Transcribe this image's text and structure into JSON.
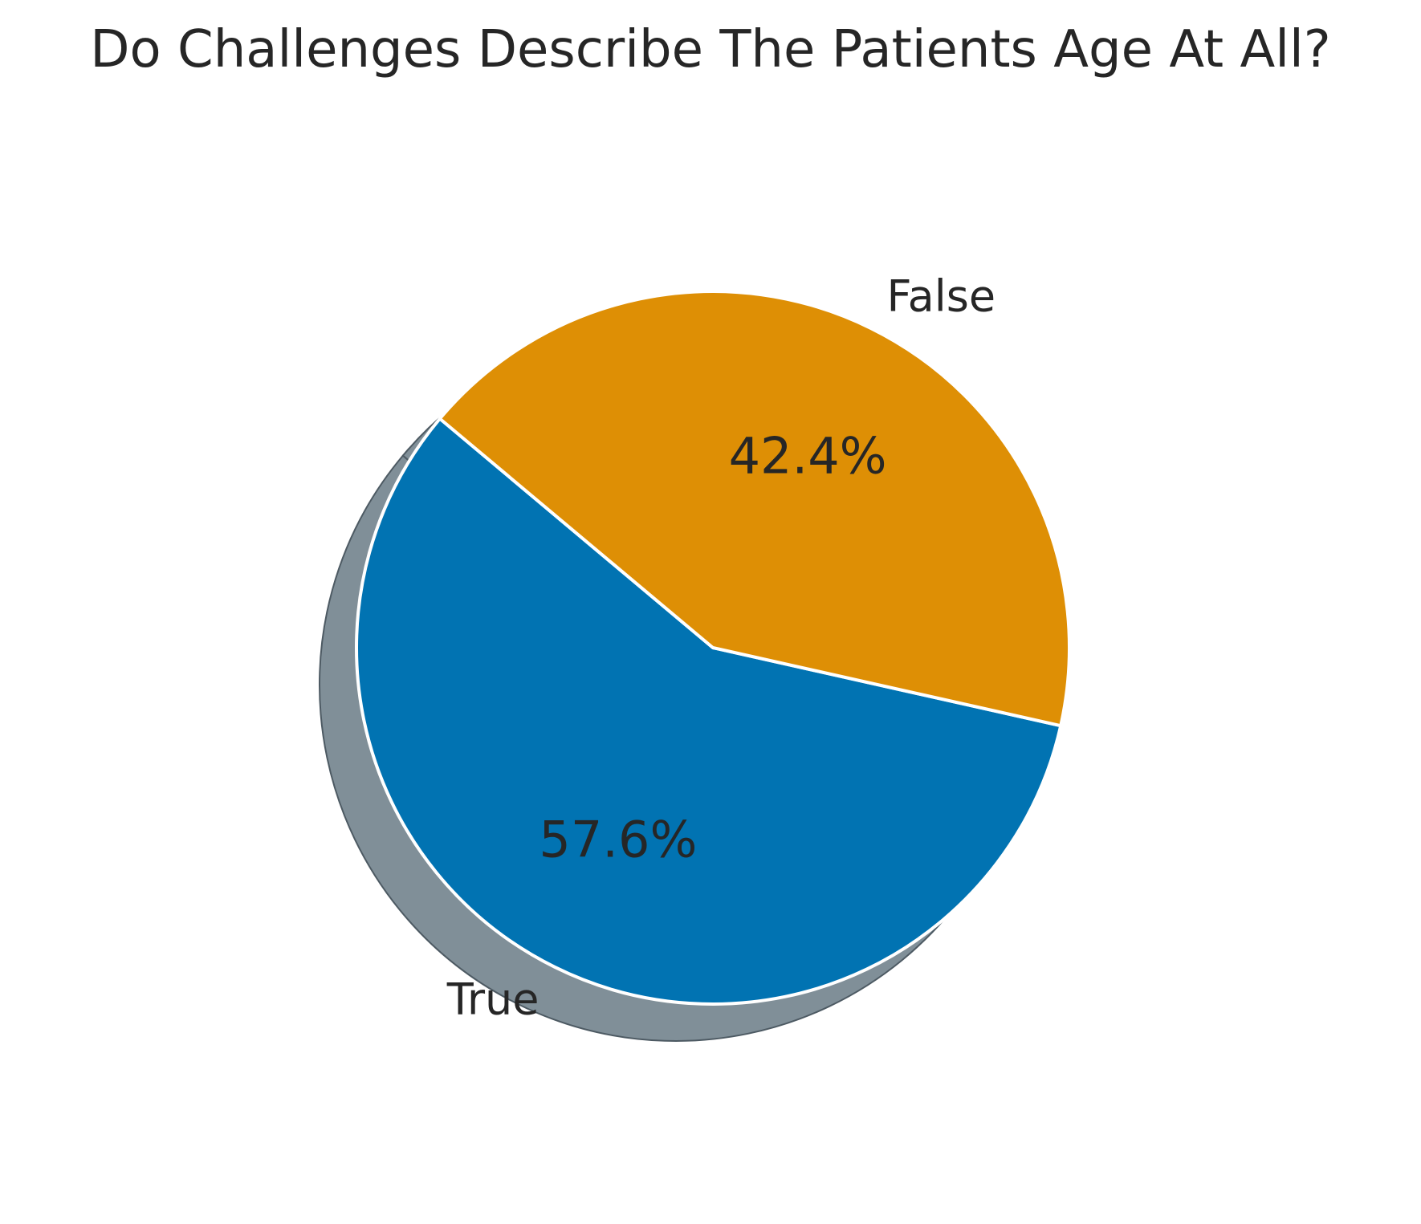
{
  "chart_data": {
    "type": "pie",
    "title": "Do Challenges Describe The Patients Age At All?",
    "slices": [
      {
        "label": "True",
        "value": 57.6,
        "pct_label": "57.6%",
        "color": "#0173b2"
      },
      {
        "label": "False",
        "value": 42.4,
        "pct_label": "42.4%",
        "color": "#de8f05"
      }
    ],
    "start_angle_deg": 140,
    "counterclock": true,
    "shadow": true,
    "shadow_color": "#808f98",
    "edge_color": "#ffffff",
    "legend": "none"
  }
}
